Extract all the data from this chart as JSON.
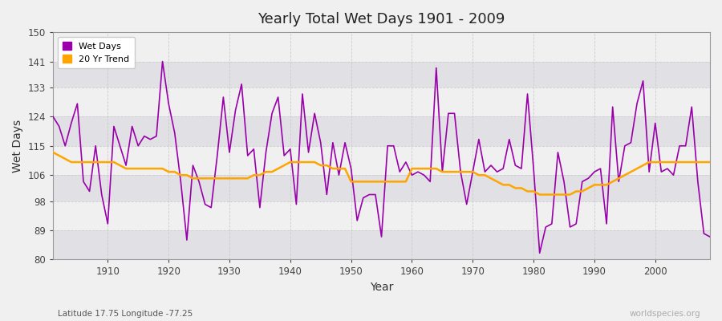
{
  "title": "Yearly Total Wet Days 1901 - 2009",
  "xlabel": "Year",
  "ylabel": "Wet Days",
  "xlim": [
    1901,
    2009
  ],
  "ylim": [
    80,
    150
  ],
  "yticks": [
    80,
    89,
    98,
    106,
    115,
    124,
    133,
    141,
    150
  ],
  "xticks": [
    1910,
    1920,
    1930,
    1940,
    1950,
    1960,
    1970,
    1980,
    1990,
    2000
  ],
  "background_color": "#f0f0f0",
  "plot_bg_color": "#f0f0f0",
  "band_light": "#f0f0f0",
  "band_dark": "#e0e0e5",
  "line_color": "#9900aa",
  "trend_color": "#ffa500",
  "grid_color": "#cccccc",
  "subtitle": "Latitude 17.75 Longitude -77.25",
  "watermark": "worldspecies.org",
  "years": [
    1901,
    1902,
    1903,
    1904,
    1905,
    1906,
    1907,
    1908,
    1909,
    1910,
    1911,
    1912,
    1913,
    1914,
    1915,
    1916,
    1917,
    1918,
    1919,
    1920,
    1921,
    1922,
    1923,
    1924,
    1925,
    1926,
    1927,
    1928,
    1929,
    1930,
    1931,
    1932,
    1933,
    1934,
    1935,
    1936,
    1937,
    1938,
    1939,
    1940,
    1941,
    1942,
    1943,
    1944,
    1945,
    1946,
    1947,
    1948,
    1949,
    1950,
    1951,
    1952,
    1953,
    1954,
    1955,
    1956,
    1957,
    1958,
    1959,
    1960,
    1961,
    1962,
    1963,
    1964,
    1965,
    1966,
    1967,
    1968,
    1969,
    1970,
    1971,
    1972,
    1973,
    1974,
    1975,
    1976,
    1977,
    1978,
    1979,
    1980,
    1981,
    1982,
    1983,
    1984,
    1985,
    1986,
    1987,
    1988,
    1989,
    1990,
    1991,
    1992,
    1993,
    1994,
    1995,
    1996,
    1997,
    1998,
    1999,
    2000,
    2001,
    2002,
    2003,
    2004,
    2005,
    2006,
    2007,
    2008,
    2009
  ],
  "wet_days": [
    124,
    121,
    115,
    122,
    128,
    104,
    101,
    115,
    100,
    91,
    121,
    115,
    109,
    121,
    115,
    118,
    117,
    118,
    141,
    128,
    119,
    104,
    86,
    109,
    104,
    97,
    96,
    112,
    130,
    113,
    126,
    134,
    112,
    114,
    96,
    113,
    125,
    130,
    112,
    114,
    97,
    131,
    113,
    125,
    116,
    100,
    116,
    106,
    116,
    108,
    92,
    99,
    100,
    100,
    87,
    115,
    115,
    107,
    110,
    106,
    107,
    106,
    104,
    139,
    107,
    125,
    125,
    107,
    97,
    107,
    117,
    107,
    109,
    107,
    108,
    117,
    109,
    108,
    131,
    108,
    82,
    90,
    91,
    113,
    104,
    90,
    91,
    104,
    105,
    107,
    108,
    91,
    127,
    104,
    115,
    116,
    128,
    135,
    107,
    122,
    107,
    108,
    106,
    115,
    115,
    127,
    104,
    88,
    87
  ],
  "trend_values": [
    113,
    112,
    111,
    110,
    110,
    110,
    110,
    110,
    110,
    110,
    110,
    109,
    108,
    108,
    108,
    108,
    108,
    108,
    108,
    107,
    107,
    106,
    106,
    105,
    105,
    105,
    105,
    105,
    105,
    105,
    105,
    105,
    105,
    106,
    106,
    107,
    107,
    108,
    109,
    110,
    110,
    110,
    110,
    110,
    109,
    109,
    108,
    108,
    108,
    104,
    104,
    104,
    104,
    104,
    104,
    104,
    104,
    104,
    104,
    108,
    108,
    108,
    108,
    108,
    107,
    107,
    107,
    107,
    107,
    107,
    106,
    106,
    105,
    104,
    103,
    103,
    102,
    102,
    101,
    101,
    100,
    100,
    100,
    100,
    100,
    100,
    101,
    101,
    102,
    103,
    103,
    103,
    104,
    105,
    106,
    107,
    108,
    109,
    110,
    110,
    110,
    110,
    110,
    110,
    110,
    110,
    110,
    110,
    110
  ]
}
